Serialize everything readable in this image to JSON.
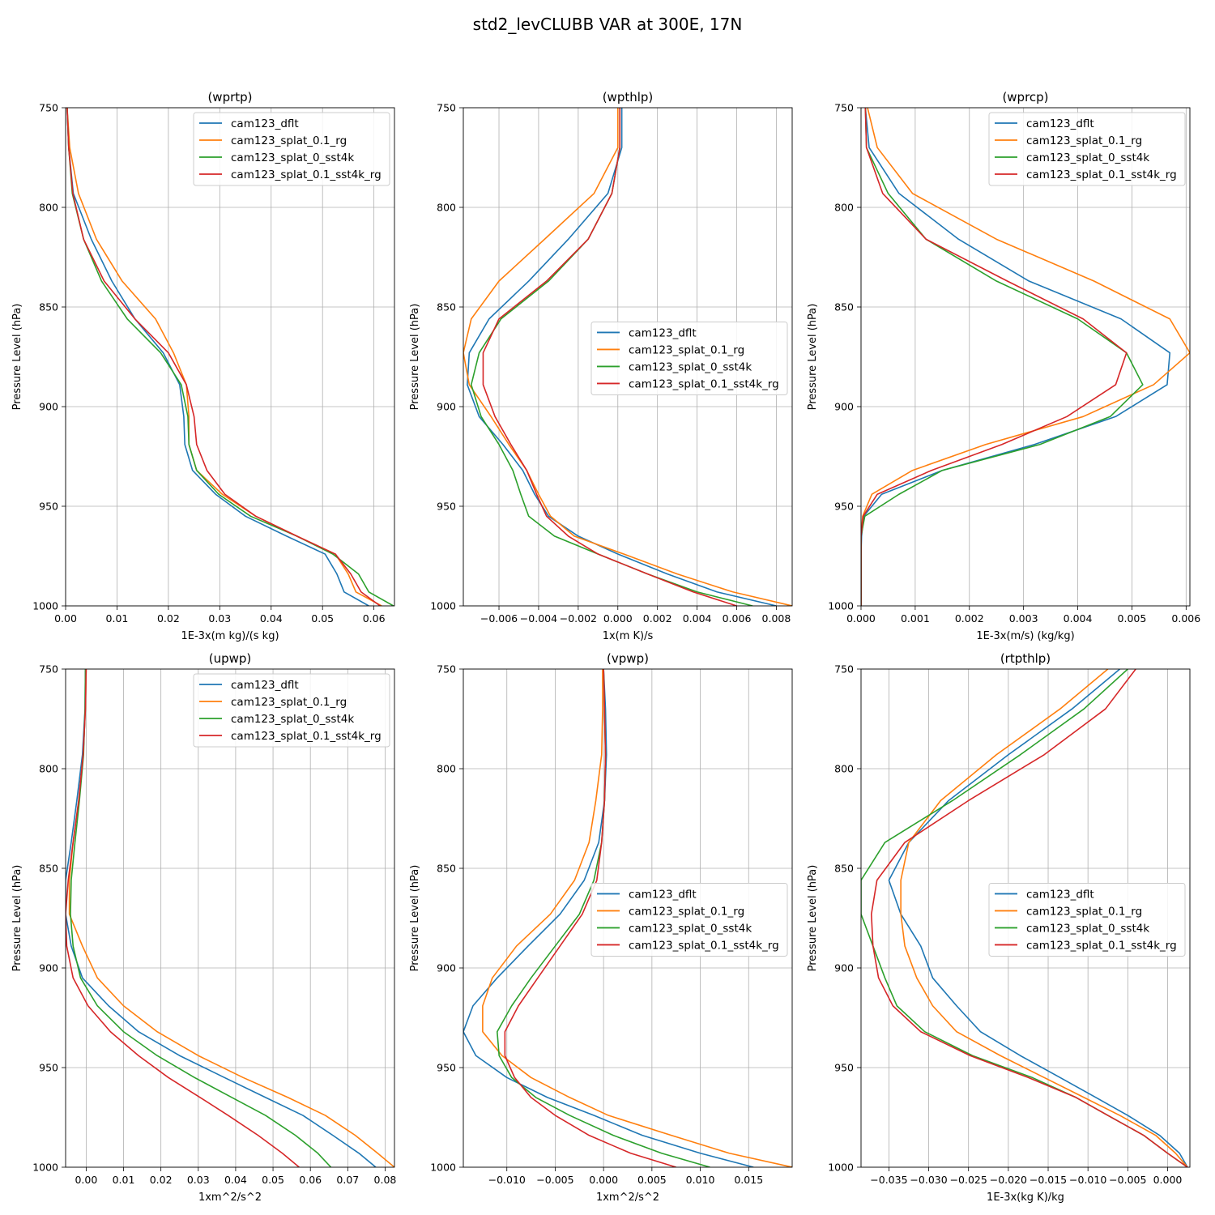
{
  "suptitle": "std2_levCLUBB VAR at 300E, 17N",
  "colors": {
    "cam123_dflt": "#1f77b4",
    "cam123_splat_0.1_rg": "#ff7f0e",
    "cam123_splat_0_sst4k": "#2ca02c",
    "cam123_splat_0.1_sst4k_rg": "#d62728"
  },
  "chart_data": [
    {
      "type": "line",
      "title": "(wprtp)",
      "xlabel": "1E-3x(m kg)/(s kg)",
      "ylabel": "Pressure Level (hPa)",
      "xlim": [
        0,
        0.064
      ],
      "xticks": [
        0,
        0.01,
        0.02,
        0.03,
        0.04,
        0.05,
        0.06
      ],
      "xtick_labels": [
        "0.00",
        "0.01",
        "0.02",
        "0.03",
        "0.04",
        "0.05",
        "0.06"
      ],
      "ylim": [
        1000,
        750
      ],
      "yticks": [
        750,
        800,
        850,
        900,
        950,
        1000
      ],
      "grid": true,
      "legend": "upper right",
      "levels": [
        750,
        770,
        793,
        816,
        837,
        856,
        873,
        889,
        905,
        919,
        932,
        944,
        955,
        965,
        974,
        984,
        993,
        1000
      ],
      "series": [
        {
          "name": "cam123_dflt",
          "values": [
            0.0003,
            0.0006,
            0.0015,
            0.005,
            0.009,
            0.0135,
            0.019,
            0.0222,
            0.023,
            0.0232,
            0.0247,
            0.0292,
            0.035,
            0.043,
            0.0505,
            0.0528,
            0.0542,
            0.059
          ]
        },
        {
          "name": "cam123_splat_0.1_rg",
          "values": [
            0.0003,
            0.0008,
            0.0025,
            0.006,
            0.011,
            0.0175,
            0.021,
            0.0235,
            0.024,
            0.024,
            0.0255,
            0.0305,
            0.037,
            0.045,
            0.0525,
            0.055,
            0.0565,
            0.0615
          ]
        },
        {
          "name": "cam123_splat_0_sst4k",
          "values": [
            0.0003,
            0.0006,
            0.0013,
            0.0035,
            0.007,
            0.012,
            0.0185,
            0.0225,
            0.0238,
            0.024,
            0.0255,
            0.0298,
            0.036,
            0.045,
            0.052,
            0.057,
            0.059,
            0.0638
          ]
        },
        {
          "name": "cam123_splat_0.1_sst4k_rg",
          "values": [
            0.0003,
            0.0006,
            0.0014,
            0.0035,
            0.0075,
            0.0135,
            0.02,
            0.0235,
            0.025,
            0.0255,
            0.0275,
            0.031,
            0.037,
            0.045,
            0.0525,
            0.0555,
            0.0575,
            0.0612
          ]
        }
      ]
    },
    {
      "type": "line",
      "title": "(wpthlp)",
      "xlabel": "1x(m K)/s",
      "ylabel": "Pressure Level (hPa)",
      "xlim": [
        -0.0078,
        0.0088
      ],
      "xticks": [
        -0.006,
        -0.004,
        -0.002,
        0,
        0.002,
        0.004,
        0.006,
        0.008
      ],
      "xtick_labels": [
        "−0.006",
        "−0.004",
        "−0.002",
        "0.000",
        "0.002",
        "0.004",
        "0.006",
        "0.008"
      ],
      "ylim": [
        1000,
        750
      ],
      "yticks": [
        750,
        800,
        850,
        900,
        950,
        1000
      ],
      "grid": true,
      "legend": "center right",
      "levels": [
        750,
        770,
        793,
        816,
        837,
        856,
        873,
        889,
        905,
        919,
        932,
        944,
        955,
        965,
        974,
        984,
        993,
        1000
      ],
      "series": [
        {
          "name": "cam123_dflt",
          "values": [
            0.0002,
            0.0002,
            -0.0005,
            -0.0025,
            -0.0045,
            -0.0065,
            -0.0075,
            -0.0076,
            -0.007,
            -0.0058,
            -0.0048,
            -0.0042,
            -0.0035,
            -0.002,
            0.0,
            0.0025,
            0.005,
            0.008
          ]
        },
        {
          "name": "cam123_splat_0.1_rg",
          "values": [
            0.0,
            0.0,
            -0.0012,
            -0.0037,
            -0.006,
            -0.0074,
            -0.0078,
            -0.0075,
            -0.0064,
            -0.0055,
            -0.0046,
            -0.004,
            -0.0034,
            -0.0022,
            0.0003,
            0.003,
            0.0058,
            0.0088
          ]
        },
        {
          "name": "cam123_splat_0_sst4k",
          "values": [
            0.0001,
            0.0001,
            -0.0003,
            -0.0015,
            -0.0035,
            -0.0059,
            -0.007,
            -0.0074,
            -0.0069,
            -0.006,
            -0.0053,
            -0.0049,
            -0.0045,
            -0.0032,
            -0.001,
            0.0015,
            0.004,
            0.0068
          ]
        },
        {
          "name": "cam123_splat_0.1_sst4k_rg",
          "values": [
            0.0001,
            0.0001,
            -0.0003,
            -0.0015,
            -0.0036,
            -0.006,
            -0.0068,
            -0.0068,
            -0.0062,
            -0.0054,
            -0.0046,
            -0.0041,
            -0.0036,
            -0.0025,
            -0.001,
            0.0015,
            0.0038,
            0.006
          ]
        }
      ]
    },
    {
      "type": "line",
      "title": "(wprcp)",
      "xlabel": "1E-3x(m/s) (kg/kg)",
      "ylabel": "Pressure Level (hPa)",
      "xlim": [
        0,
        0.00607
      ],
      "xticks": [
        0,
        0.001,
        0.002,
        0.003,
        0.004,
        0.005,
        0.006
      ],
      "xtick_labels": [
        "0.000",
        "0.001",
        "0.002",
        "0.003",
        "0.004",
        "0.005",
        "0.006"
      ],
      "ylim": [
        1000,
        750
      ],
      "yticks": [
        750,
        800,
        850,
        900,
        950,
        1000
      ],
      "grid": true,
      "legend": "upper right",
      "levels": [
        750,
        770,
        793,
        816,
        837,
        856,
        873,
        889,
        905,
        919,
        932,
        944,
        955,
        965,
        974,
        984,
        993,
        1000
      ],
      "series": [
        {
          "name": "cam123_dflt",
          "values": [
            8e-05,
            0.00015,
            0.0007,
            0.0018,
            0.0031,
            0.0048,
            0.0057,
            0.00565,
            0.0047,
            0.0032,
            0.0015,
            0.00038,
            5e-05,
            1e-05,
            0.0,
            0.0,
            0.0,
            0.0
          ]
        },
        {
          "name": "cam123_splat_0.1_rg",
          "values": [
            0.00012,
            0.0003,
            0.00095,
            0.0025,
            0.0043,
            0.0057,
            0.00607,
            0.0054,
            0.0041,
            0.0023,
            0.00095,
            0.0002,
            3e-05,
            0.0,
            0.0,
            0.0,
            0.0,
            0.0
          ]
        },
        {
          "name": "cam123_splat_0_sst4k",
          "values": [
            8e-05,
            0.0001,
            0.0005,
            0.0012,
            0.0025,
            0.004,
            0.0049,
            0.0052,
            0.0046,
            0.0033,
            0.0015,
            0.0007,
            7e-05,
            0.0,
            0.0,
            0.0,
            0.0,
            0.0
          ]
        },
        {
          "name": "cam123_splat_0.1_sst4k_rg",
          "values": [
            8e-05,
            0.0001,
            0.0004,
            0.0012,
            0.0027,
            0.0041,
            0.0049,
            0.0047,
            0.0038,
            0.0026,
            0.0013,
            0.0003,
            4e-05,
            0.0,
            0.0,
            0.0,
            0.0,
            0.0
          ]
        }
      ]
    },
    {
      "type": "line",
      "title": "(upwp)",
      "xlabel": "1xm^2/s^2",
      "ylabel": "Pressure Level (hPa)",
      "xlim": [
        -0.0055,
        0.0825
      ],
      "xticks": [
        0,
        0.01,
        0.02,
        0.03,
        0.04,
        0.05,
        0.06,
        0.07,
        0.08
      ],
      "xtick_labels": [
        "0.00",
        "0.01",
        "0.02",
        "0.03",
        "0.04",
        "0.05",
        "0.06",
        "0.07",
        "0.08"
      ],
      "ylim": [
        1000,
        750
      ],
      "yticks": [
        750,
        800,
        850,
        900,
        950,
        1000
      ],
      "grid": true,
      "legend": "upper right",
      "levels": [
        750,
        770,
        793,
        816,
        837,
        856,
        873,
        889,
        905,
        919,
        932,
        944,
        955,
        965,
        974,
        984,
        993,
        1000
      ],
      "series": [
        {
          "name": "cam123_dflt",
          "values": [
            -0.0002,
            -0.0003,
            -0.001,
            -0.0025,
            -0.004,
            -0.0055,
            -0.0055,
            -0.004,
            -0.001,
            0.006,
            0.014,
            0.025,
            0.037,
            0.048,
            0.058,
            0.066,
            0.073,
            0.0775
          ]
        },
        {
          "name": "cam123_splat_0.1_rg",
          "values": [
            0.0,
            -0.0002,
            -0.0008,
            -0.002,
            -0.0035,
            -0.0045,
            -0.0045,
            -0.001,
            0.003,
            0.01,
            0.019,
            0.03,
            0.042,
            0.054,
            0.064,
            0.072,
            0.078,
            0.0825
          ]
        },
        {
          "name": "cam123_splat_0_sst4k",
          "values": [
            -0.0002,
            -0.0003,
            -0.0007,
            -0.0018,
            -0.003,
            -0.004,
            -0.0042,
            -0.0035,
            -0.0015,
            0.003,
            0.01,
            0.019,
            0.029,
            0.039,
            0.048,
            0.056,
            0.062,
            0.0655
          ]
        },
        {
          "name": "cam123_splat_0.1_sst4k_rg",
          "values": [
            0.0,
            -0.0002,
            -0.0008,
            -0.002,
            -0.0035,
            -0.0048,
            -0.0055,
            -0.0052,
            -0.0035,
            0.0005,
            0.0065,
            0.014,
            0.022,
            0.0305,
            0.038,
            0.046,
            0.0525,
            0.057
          ]
        }
      ]
    },
    {
      "type": "line",
      "title": "(vpwp)",
      "xlabel": "1xm^2/s^2",
      "ylabel": "Pressure Level (hPa)",
      "xlim": [
        -0.0145,
        0.0195
      ],
      "xticks": [
        -0.01,
        -0.005,
        0,
        0.005,
        0.01,
        0.015
      ],
      "xtick_labels": [
        "−0.010",
        "−0.005",
        "0.000",
        "0.005",
        "0.010",
        "0.015"
      ],
      "ylim": [
        1000,
        750
      ],
      "yticks": [
        750,
        800,
        850,
        900,
        950,
        1000
      ],
      "grid": true,
      "legend": "center right",
      "levels": [
        750,
        770,
        793,
        816,
        837,
        856,
        873,
        889,
        905,
        919,
        932,
        944,
        955,
        965,
        974,
        984,
        993,
        1000
      ],
      "series": [
        {
          "name": "cam123_dflt",
          "values": [
            0.0,
            0.0002,
            0.0003,
            0.0001,
            -0.0005,
            -0.002,
            -0.0045,
            -0.0078,
            -0.011,
            -0.0135,
            -0.0145,
            -0.0132,
            -0.01,
            -0.0058,
            -0.001,
            0.004,
            0.01,
            0.0155
          ]
        },
        {
          "name": "cam123_splat_0.1_rg",
          "values": [
            -0.0001,
            -0.0001,
            -0.0002,
            -0.0008,
            -0.0015,
            -0.003,
            -0.0055,
            -0.009,
            -0.0115,
            -0.0125,
            -0.0125,
            -0.0105,
            -0.0075,
            -0.0035,
            0.0005,
            0.007,
            0.013,
            0.0195
          ]
        },
        {
          "name": "cam123_splat_0_sst4k",
          "values": [
            0.0,
            0.0001,
            0.0002,
            0.0001,
            -0.0002,
            -0.001,
            -0.0025,
            -0.005,
            -0.0075,
            -0.0095,
            -0.011,
            -0.0108,
            -0.0095,
            -0.007,
            -0.0035,
            0.001,
            0.006,
            0.011
          ]
        },
        {
          "name": "cam123_splat_0.1_sst4k_rg",
          "values": [
            0.0,
            0.0001,
            0.0002,
            0.0001,
            -0.0002,
            -0.0007,
            -0.0022,
            -0.0045,
            -0.0068,
            -0.0088,
            -0.0102,
            -0.0102,
            -0.0092,
            -0.0075,
            -0.005,
            -0.0015,
            0.0028,
            0.0075
          ]
        }
      ]
    },
    {
      "type": "line",
      "title": "(rtpthlp)",
      "xlabel": "1E-3x(kg K)/kg",
      "ylabel": "Pressure Level (hPa)",
      "xlim": [
        -0.0385,
        0.0028
      ],
      "xticks": [
        -0.035,
        -0.03,
        -0.025,
        -0.02,
        -0.015,
        -0.01,
        -0.005,
        0
      ],
      "xtick_labels": [
        "−0.035",
        "−0.030",
        "−0.025",
        "−0.020",
        "−0.015",
        "−0.010",
        "−0.005",
        "0.000"
      ],
      "ylim": [
        1000,
        750
      ],
      "yticks": [
        750,
        800,
        850,
        900,
        950,
        1000
      ],
      "grid": true,
      "legend": "center right",
      "levels": [
        750,
        770,
        793,
        816,
        837,
        856,
        873,
        889,
        905,
        919,
        932,
        944,
        955,
        965,
        974,
        984,
        993,
        1000
      ],
      "series": [
        {
          "name": "cam123_dflt",
          "values": [
            -0.006,
            -0.012,
            -0.02,
            -0.0275,
            -0.0325,
            -0.035,
            -0.0335,
            -0.031,
            -0.0295,
            -0.0265,
            -0.0235,
            -0.0185,
            -0.0135,
            -0.009,
            -0.005,
            -0.001,
            0.0015,
            0.0025
          ]
        },
        {
          "name": "cam123_splat_0.1_rg",
          "values": [
            -0.0075,
            -0.0135,
            -0.0215,
            -0.0285,
            -0.0325,
            -0.0335,
            -0.0335,
            -0.033,
            -0.0315,
            -0.0295,
            -0.0265,
            -0.021,
            -0.0155,
            -0.0105,
            -0.006,
            -0.0015,
            0.001,
            0.0025
          ]
        },
        {
          "name": "cam123_splat_0_sst4k",
          "values": [
            -0.005,
            -0.0105,
            -0.0185,
            -0.027,
            -0.0355,
            -0.0385,
            -0.0385,
            -0.037,
            -0.0355,
            -0.034,
            -0.0305,
            -0.0245,
            -0.017,
            -0.0115,
            -0.0075,
            -0.003,
            0.0,
            0.0025
          ]
        },
        {
          "name": "cam123_splat_0.1_sst4k_rg",
          "values": [
            -0.004,
            -0.0078,
            -0.0155,
            -0.025,
            -0.033,
            -0.0365,
            -0.0372,
            -0.037,
            -0.0363,
            -0.0345,
            -0.031,
            -0.0248,
            -0.0175,
            -0.0115,
            -0.0075,
            -0.003,
            0.0,
            0.0025
          ]
        }
      ]
    }
  ]
}
